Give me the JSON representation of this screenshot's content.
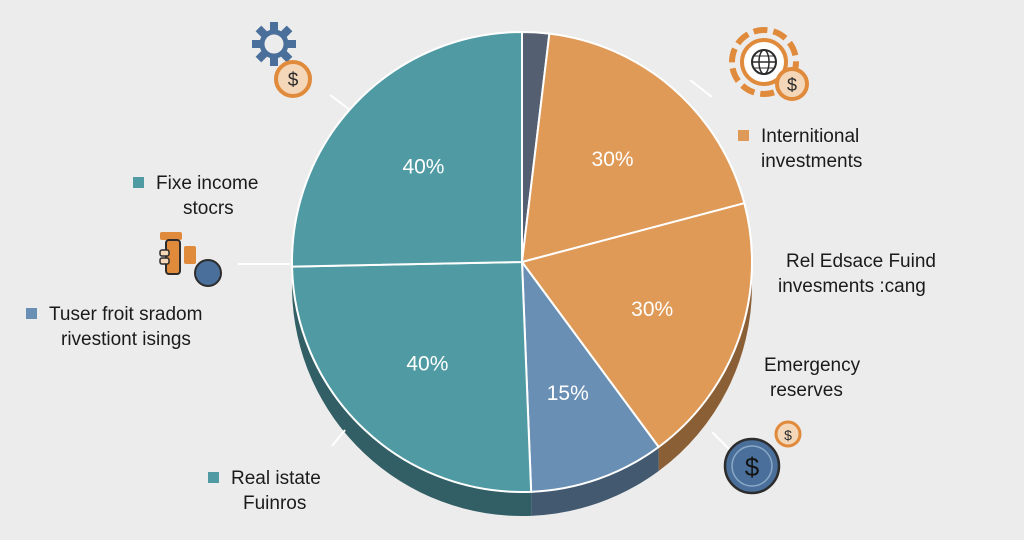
{
  "colors": {
    "background": "#ececec",
    "teal": "#4f9aa3",
    "blue": "#6a8fb5",
    "orange": "#e09a57",
    "slate": "#555f72",
    "icon_blue": "#4a6f9a",
    "icon_orange": "#e08a3c"
  },
  "chart_data": {
    "type": "pie",
    "style": "3d-pie",
    "slices": [
      {
        "label": "",
        "value": 3,
        "color": "#555f72",
        "display": ""
      },
      {
        "label": "",
        "value": 30,
        "color": "#e09a57",
        "display": "30%"
      },
      {
        "label": "",
        "value": 30,
        "color": "#e09a57",
        "display": "30%"
      },
      {
        "label": "",
        "value": 15,
        "color": "#6a8fb5",
        "display": "15%"
      },
      {
        "label": "",
        "value": 40,
        "color": "#4f9aa3",
        "display": "40%"
      },
      {
        "label": "",
        "value": 40,
        "color": "#4f9aa3",
        "display": "40%"
      }
    ],
    "legend": [
      {
        "line1": "Fixe income",
        "line2": "stocrs",
        "color": "#4f9aa3"
      },
      {
        "line1": "Tuser froit sradom",
        "line2": "rivestiont isings",
        "color": "#6a8fb5"
      },
      {
        "line1": "Real istate",
        "line2": "Fuinros",
        "color": "#4f9aa3"
      },
      {
        "line1": "Internitional",
        "line2": "investments",
        "color": "#e09a57"
      },
      {
        "line1": "Rel Edsace Fuind",
        "line2": "invesments :cang",
        "color": ""
      },
      {
        "line1": "Emergency",
        "line2": "reserves",
        "color": ""
      }
    ]
  },
  "icons": {
    "top_left": "gear-dollar-icon",
    "mid_left": "hand-coin-icon",
    "top_right": "globe-dollar-icon",
    "bottom_right": "dollar-coin-icon",
    "dollar_glyph": "$"
  }
}
